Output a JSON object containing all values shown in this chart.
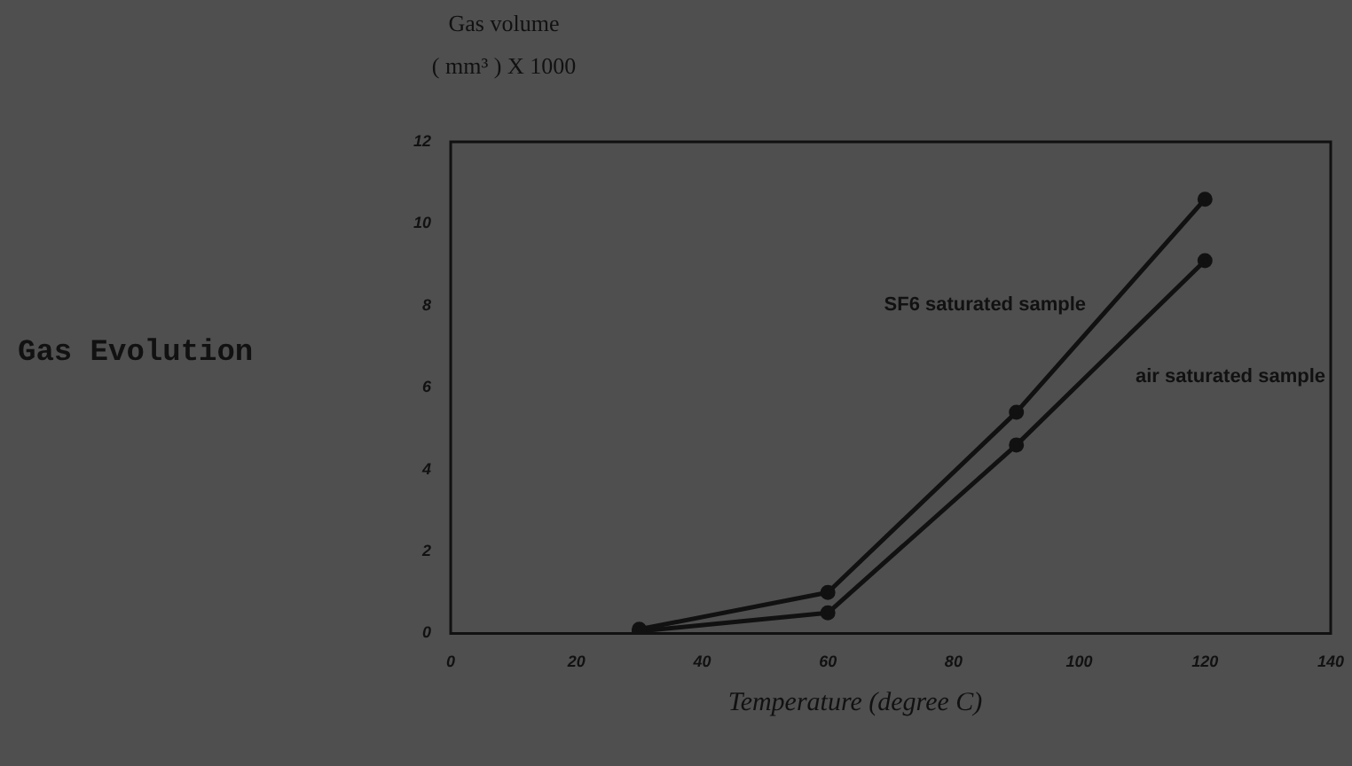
{
  "chart_data": {
    "type": "line",
    "title": "Gas Evolution",
    "ylabel": "Gas volume\n( mm³ ) X 1000",
    "xlabel": "Temperature (degree C)",
    "x": [
      30,
      60,
      90,
      120
    ],
    "series": [
      {
        "name": "SF6 saturated sample",
        "color": "#111111",
        "values": [
          0.1,
          1.0,
          5.4,
          10.6
        ]
      },
      {
        "name": "air saturated sample",
        "color": "#111111",
        "values": [
          0.05,
          0.5,
          4.6,
          9.1
        ]
      }
    ],
    "xlim": [
      0,
      140
    ],
    "xticks": [
      0,
      20,
      40,
      60,
      80,
      100,
      120,
      140
    ],
    "ylim": [
      0,
      12
    ],
    "yticks": [
      0,
      2,
      4,
      6,
      8,
      10,
      12
    ],
    "grid": false,
    "legend": false,
    "marker": "circle",
    "line_style": "solid"
  }
}
